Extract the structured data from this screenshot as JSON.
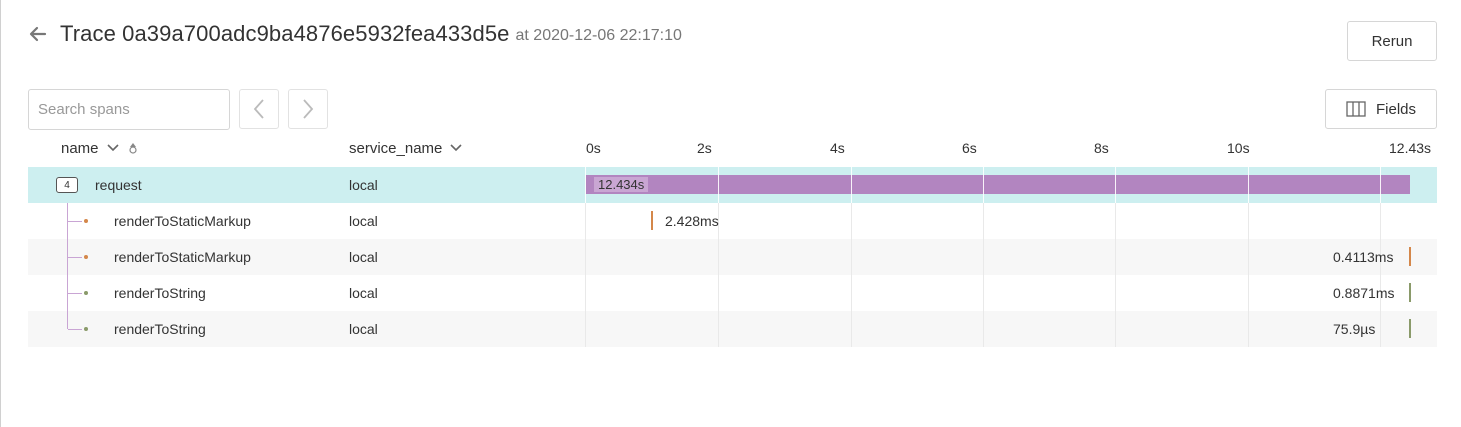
{
  "header": {
    "back_icon": "arrow-left-icon",
    "title": "Trace 0a39a700adc9ba4876e5932fea433d5e",
    "subtitle": "at 2020-12-06 22:17:10",
    "rerun_label": "Rerun"
  },
  "toolbar": {
    "search_placeholder": "Search spans",
    "prev_icon": "chevron-left-icon",
    "next_icon": "chevron-right-icon",
    "fields_label": "Fields",
    "fields_icon": "columns-icon"
  },
  "columns": {
    "name": "name",
    "service_name": "service_name"
  },
  "timeline": {
    "ticks": [
      "0s",
      "2s",
      "4s",
      "6s",
      "8s",
      "10s",
      "12.43s"
    ]
  },
  "spans": [
    {
      "name": "request",
      "service": "local",
      "duration": "12.434s",
      "child_count": "4",
      "color": "#b285c0"
    },
    {
      "name": "renderToStaticMarkup",
      "service": "local",
      "duration": "2.428ms",
      "color": "#d4874a"
    },
    {
      "name": "renderToStaticMarkup",
      "service": "local",
      "duration": "0.4113ms",
      "color": "#d4874a"
    },
    {
      "name": "renderToString",
      "service": "local",
      "duration": "0.8871ms",
      "color": "#8a9a6a"
    },
    {
      "name": "renderToString",
      "service": "local",
      "duration": "75.9µs",
      "color": "#8a9a6a"
    }
  ]
}
